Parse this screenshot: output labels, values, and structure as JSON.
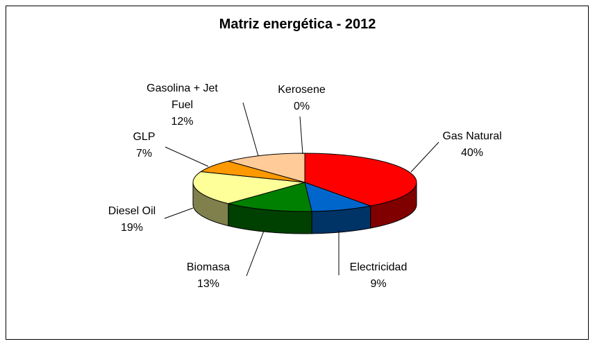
{
  "chart_data": {
    "type": "pie",
    "title": "Matriz energética - 2012",
    "categories": [
      "Gas Natural",
      "Electricidad",
      "Biomasa",
      "Diesel Oil",
      "GLP",
      "Gasolina + Jet Fuel",
      "Kerosene"
    ],
    "values": [
      40,
      9,
      13,
      19,
      7,
      12,
      0
    ],
    "value_labels": [
      "40%",
      "9%",
      "13%",
      "19%",
      "7%",
      "12%",
      "0%"
    ],
    "colors": [
      "#ff0000",
      "#0066cc",
      "#008000",
      "#ffff99",
      "#ff9900",
      "#ffcc99",
      "#cc99ff"
    ]
  }
}
